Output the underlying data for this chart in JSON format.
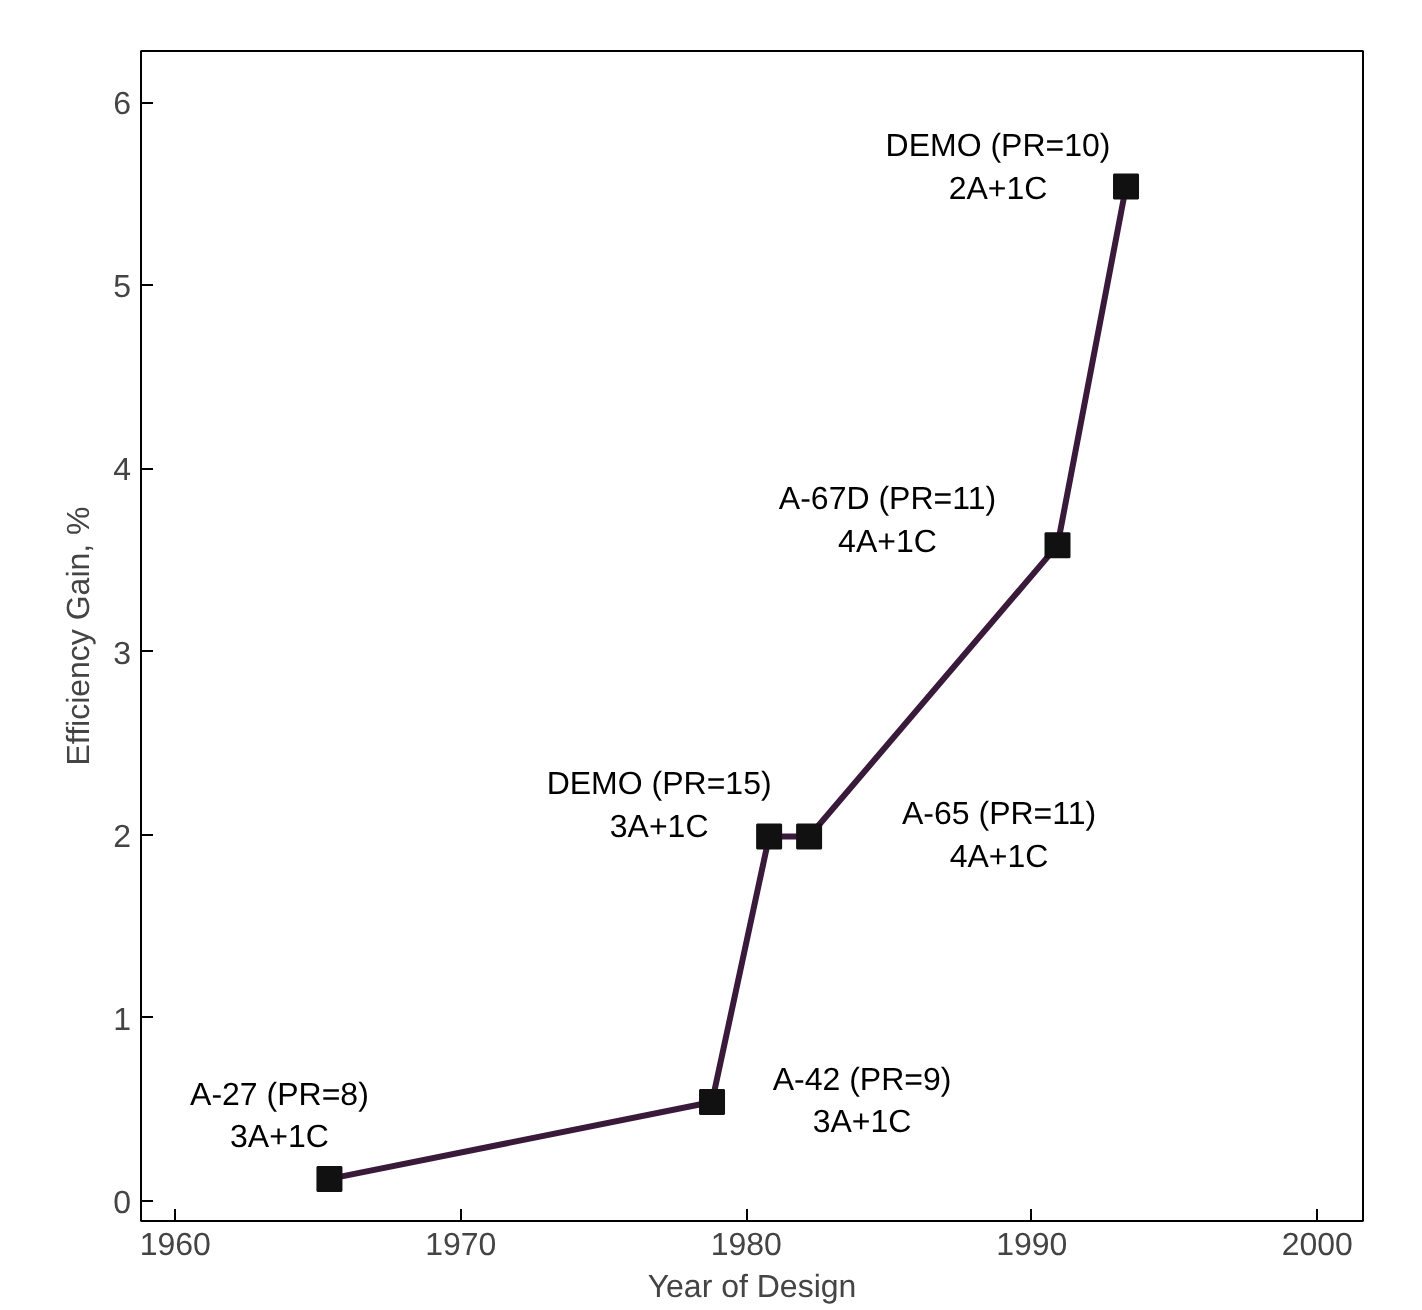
{
  "chart_data": {
    "type": "line",
    "xlabel": "Year of Design",
    "ylabel": "Efficiency Gain, %",
    "x": [
      1965.4,
      1978.8,
      1980.8,
      1982.2,
      1990.9,
      1993.3
    ],
    "series": [
      {
        "color": "#3a1a3a",
        "values": [
          0.12,
          0.54,
          1.99,
          1.99,
          3.58,
          5.54
        ]
      }
    ],
    "xlim": [
      1958.8,
      2001.6
    ],
    "ylim": [
      -0.11,
      6.28
    ],
    "xticks": [
      1960,
      1970,
      1980,
      1990,
      2000
    ],
    "yticks": [
      0,
      1,
      2,
      3,
      4,
      5,
      6
    ],
    "marker": "square",
    "line_style": "solid",
    "grid": false,
    "annotations": [
      {
        "text": "A-27 (PR=8)\n3A+1C",
        "x": 1965.4,
        "y": 0.12
      },
      {
        "text": "A-42 (PR=9)\n3A+1C",
        "x": 1978.8,
        "y": 0.54
      },
      {
        "text": "DEMO (PR=15)\n3A+1C",
        "x": 1980.8,
        "y": 1.99
      },
      {
        "text": "A-65 (PR=11)\n4A+1C",
        "x": 1982.2,
        "y": 1.99
      },
      {
        "text": "A-67D (PR=11)\n4A+1C",
        "x": 1990.9,
        "y": 3.58
      },
      {
        "text": "DEMO (PR=10)\n2A+1C",
        "x": 1993.3,
        "y": 5.54
      }
    ]
  }
}
